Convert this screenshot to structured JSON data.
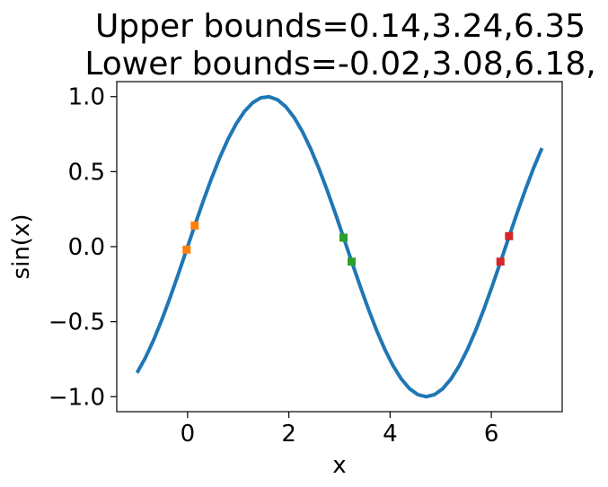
{
  "chart_data": {
    "type": "line",
    "title_lines": [
      "Upper bounds=0.14,3.24,6.35",
      "Lower bounds=-0.02,3.08,6.18,"
    ],
    "xlabel": "x",
    "ylabel": "sin(x)",
    "xlim": [
      -1.4,
      7.4
    ],
    "ylim": [
      -1.1,
      1.1
    ],
    "xticks": [
      {
        "value": 0,
        "label": "0"
      },
      {
        "value": 2,
        "label": "2"
      },
      {
        "value": 4,
        "label": "4"
      },
      {
        "value": 6,
        "label": "6"
      }
    ],
    "yticks": [
      {
        "value": 1.0,
        "label": "1.0"
      },
      {
        "value": 0.5,
        "label": "0.5"
      },
      {
        "value": 0.0,
        "label": "0.0"
      },
      {
        "value": -0.5,
        "label": "−0.5"
      },
      {
        "value": -1.0,
        "label": "−1.0"
      }
    ],
    "grid": false,
    "line_series": {
      "color": "#1f77b4",
      "function": "sin",
      "x_start": -1.0,
      "x_end": 7.0
    },
    "marker_groups": [
      {
        "color": "#ff7f0e",
        "points": [
          {
            "x": 0.14,
            "y": 0.14
          },
          {
            "x": -0.02,
            "y": -0.02
          }
        ]
      },
      {
        "color": "#2ca02c",
        "points": [
          {
            "x": 3.08,
            "y": 0.06
          },
          {
            "x": 3.24,
            "y": -0.1
          }
        ]
      },
      {
        "color": "#d62728",
        "points": [
          {
            "x": 6.35,
            "y": 0.07
          },
          {
            "x": 6.18,
            "y": -0.1
          }
        ]
      }
    ]
  }
}
